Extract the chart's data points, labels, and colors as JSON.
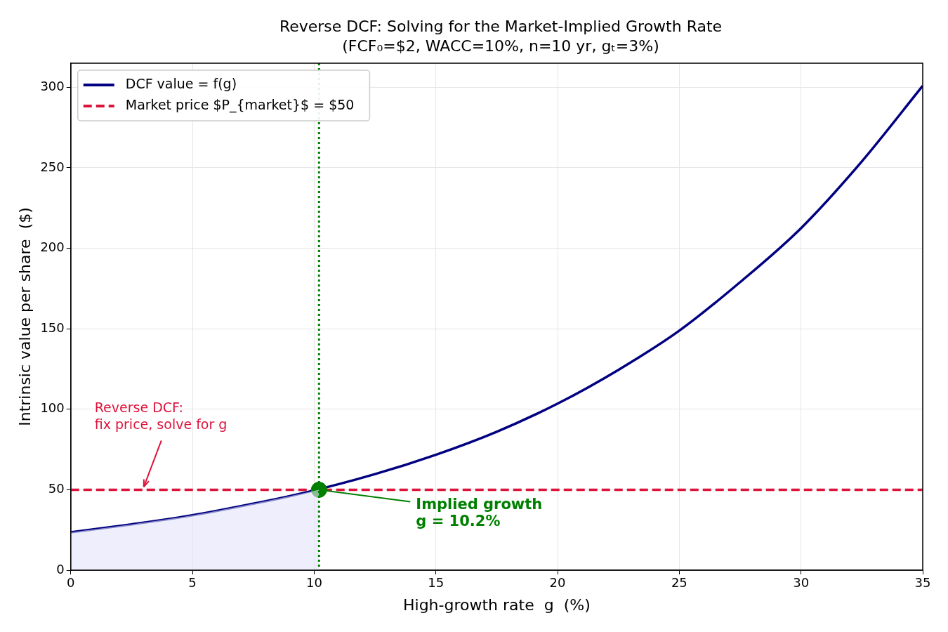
{
  "chart_data": {
    "type": "line",
    "title": "Reverse DCF: Solving for the Market-Implied Growth Rate",
    "subtitle": "(FCF₀=$2, WACC=10%, n=10 yr, gₜ=3%)",
    "xlabel": "High-growth rate  g  (%)",
    "ylabel": "Intrinsic value per share  ($)",
    "xlim": [
      0,
      35
    ],
    "ylim": [
      0,
      315
    ],
    "xticks": [
      0,
      5,
      10,
      15,
      20,
      25,
      30,
      35
    ],
    "yticks": [
      0,
      50,
      100,
      150,
      200,
      250,
      300
    ],
    "grid": true,
    "legend": "top left",
    "series": [
      {
        "type": "area",
        "color": "#eeeefc",
        "x": [
          0,
          2.5,
          5,
          7.5,
          9,
          10.2
        ],
        "values": [
          23.6,
          28.5,
          34.1,
          41.3,
          46,
          50
        ],
        "marker": "none"
      },
      {
        "name": "DCF value = f(g)",
        "color": "#000080",
        "x": [
          0,
          2.5,
          5,
          7.5,
          9,
          12.5,
          15,
          17.5,
          20,
          22.5,
          25,
          27.5,
          30,
          32.5,
          35
        ],
        "values": [
          23.6,
          28.5,
          34.1,
          41.3,
          46,
          59.7,
          71.7,
          86,
          103.5,
          124.5,
          148.8,
          179,
          212.5,
          254,
          301
        ],
        "marker": "none",
        "line_style": "solid"
      },
      {
        "type": "line",
        "name": "Market price $P_{market}$ = $50",
        "color": "#dc143c",
        "x": [
          0,
          35
        ],
        "values": [
          50,
          50
        ],
        "marker": "none",
        "line_style": "dashed"
      },
      {
        "type": "scatter",
        "color": "#008000",
        "x": [
          10.2
        ],
        "values": [
          50
        ],
        "marker": "circle"
      }
    ],
    "ref_lines": [
      {
        "axis": "x",
        "value": 10.2,
        "color": "#008000",
        "line_style": "dotted"
      }
    ],
    "annotations": [
      {
        "text": "Reverse DCF:\nfix price, solve for g",
        "x": 3,
        "y": 50
      },
      {
        "text": "Implied growth\ng = 10.2%",
        "x": 10.2,
        "y": 50
      }
    ]
  }
}
